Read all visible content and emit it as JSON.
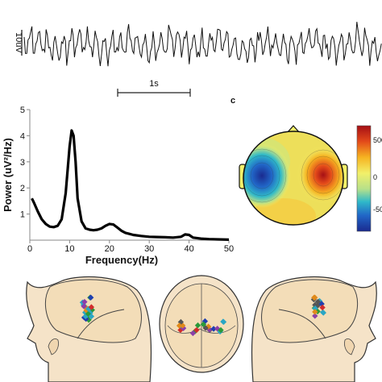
{
  "eeg_trace": {
    "scale_label": "10uV",
    "time_label": "1s"
  },
  "panel_c_label": "c",
  "chart_data": {
    "type": "line",
    "title": "",
    "xlabel": "Frequency(Hz)",
    "ylabel": "Power (uV²/Hz)",
    "xlim": [
      0,
      50
    ],
    "ylim": [
      0,
      5
    ],
    "xticks": [
      "0",
      "10",
      "20",
      "30",
      "40",
      "50"
    ],
    "yticks": [
      "1",
      "2",
      "3",
      "4",
      "5"
    ],
    "grid": false,
    "series": [
      {
        "x": [
          0.5,
          1,
          2,
          3,
          4,
          5,
          6,
          7,
          8,
          9,
          10,
          10.5,
          11,
          11.5,
          12,
          13,
          14,
          15,
          16,
          17,
          18,
          19,
          20,
          21,
          22,
          23,
          24,
          25,
          26,
          28,
          30,
          32,
          34,
          36,
          38,
          39,
          40,
          41,
          43,
          45,
          47,
          50
        ],
        "values": [
          1.6,
          1.45,
          1.1,
          0.8,
          0.62,
          0.52,
          0.5,
          0.55,
          0.8,
          1.8,
          3.6,
          4.2,
          4.0,
          3.0,
          1.6,
          0.72,
          0.45,
          0.4,
          0.38,
          0.4,
          0.45,
          0.55,
          0.62,
          0.6,
          0.48,
          0.36,
          0.28,
          0.24,
          0.2,
          0.16,
          0.13,
          0.12,
          0.11,
          0.1,
          0.13,
          0.22,
          0.2,
          0.1,
          0.06,
          0.04,
          0.03,
          0.02
        ]
      }
    ]
  },
  "colorbar": {
    "ticks": [
      "500",
      "0",
      "-50"
    ],
    "colors": [
      "#a50f15",
      "#e34a1a",
      "#f6b321",
      "#f2f06a",
      "#b6e08a",
      "#2fb9c9",
      "#2166c7",
      "#1a2a8f"
    ]
  },
  "dipoles": {
    "colors": [
      "#1f3fb0",
      "#d22b2b",
      "#2a9a3a",
      "#8b3fa8",
      "#e08a1a",
      "#2aa6c4",
      "#555555"
    ]
  }
}
